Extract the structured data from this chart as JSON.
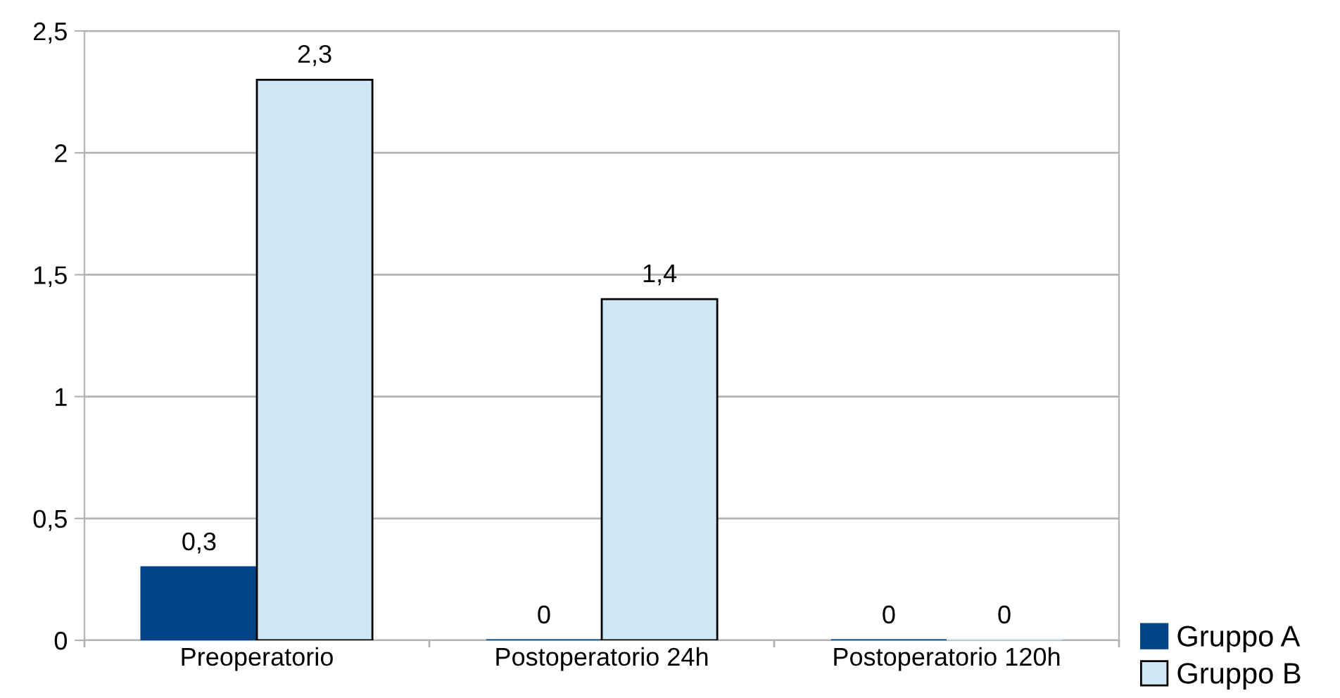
{
  "chart_data": {
    "type": "bar",
    "categories": [
      "Preoperatorio",
      "Postoperatorio 24h",
      "Postoperatorio 120h"
    ],
    "series": [
      {
        "name": "Gruppo A",
        "color": "#004586",
        "values": [
          0.3,
          0,
          0
        ],
        "value_labels": [
          "0,3",
          "0",
          "0"
        ]
      },
      {
        "name": "Gruppo B",
        "color": "#cfe7f5",
        "values": [
          2.3,
          1.4,
          0
        ],
        "value_labels": [
          "2,3",
          "1,4",
          "0"
        ]
      }
    ],
    "ylim": [
      0,
      2.5
    ],
    "yticks": [
      0,
      {
        "value": 0.5,
        "label": "0,5"
      },
      1,
      {
        "value": 1.5,
        "label": "1,5"
      },
      2,
      {
        "value": 2.5,
        "label": "2,5"
      }
    ],
    "grid": "y",
    "legend": "bottom right"
  }
}
